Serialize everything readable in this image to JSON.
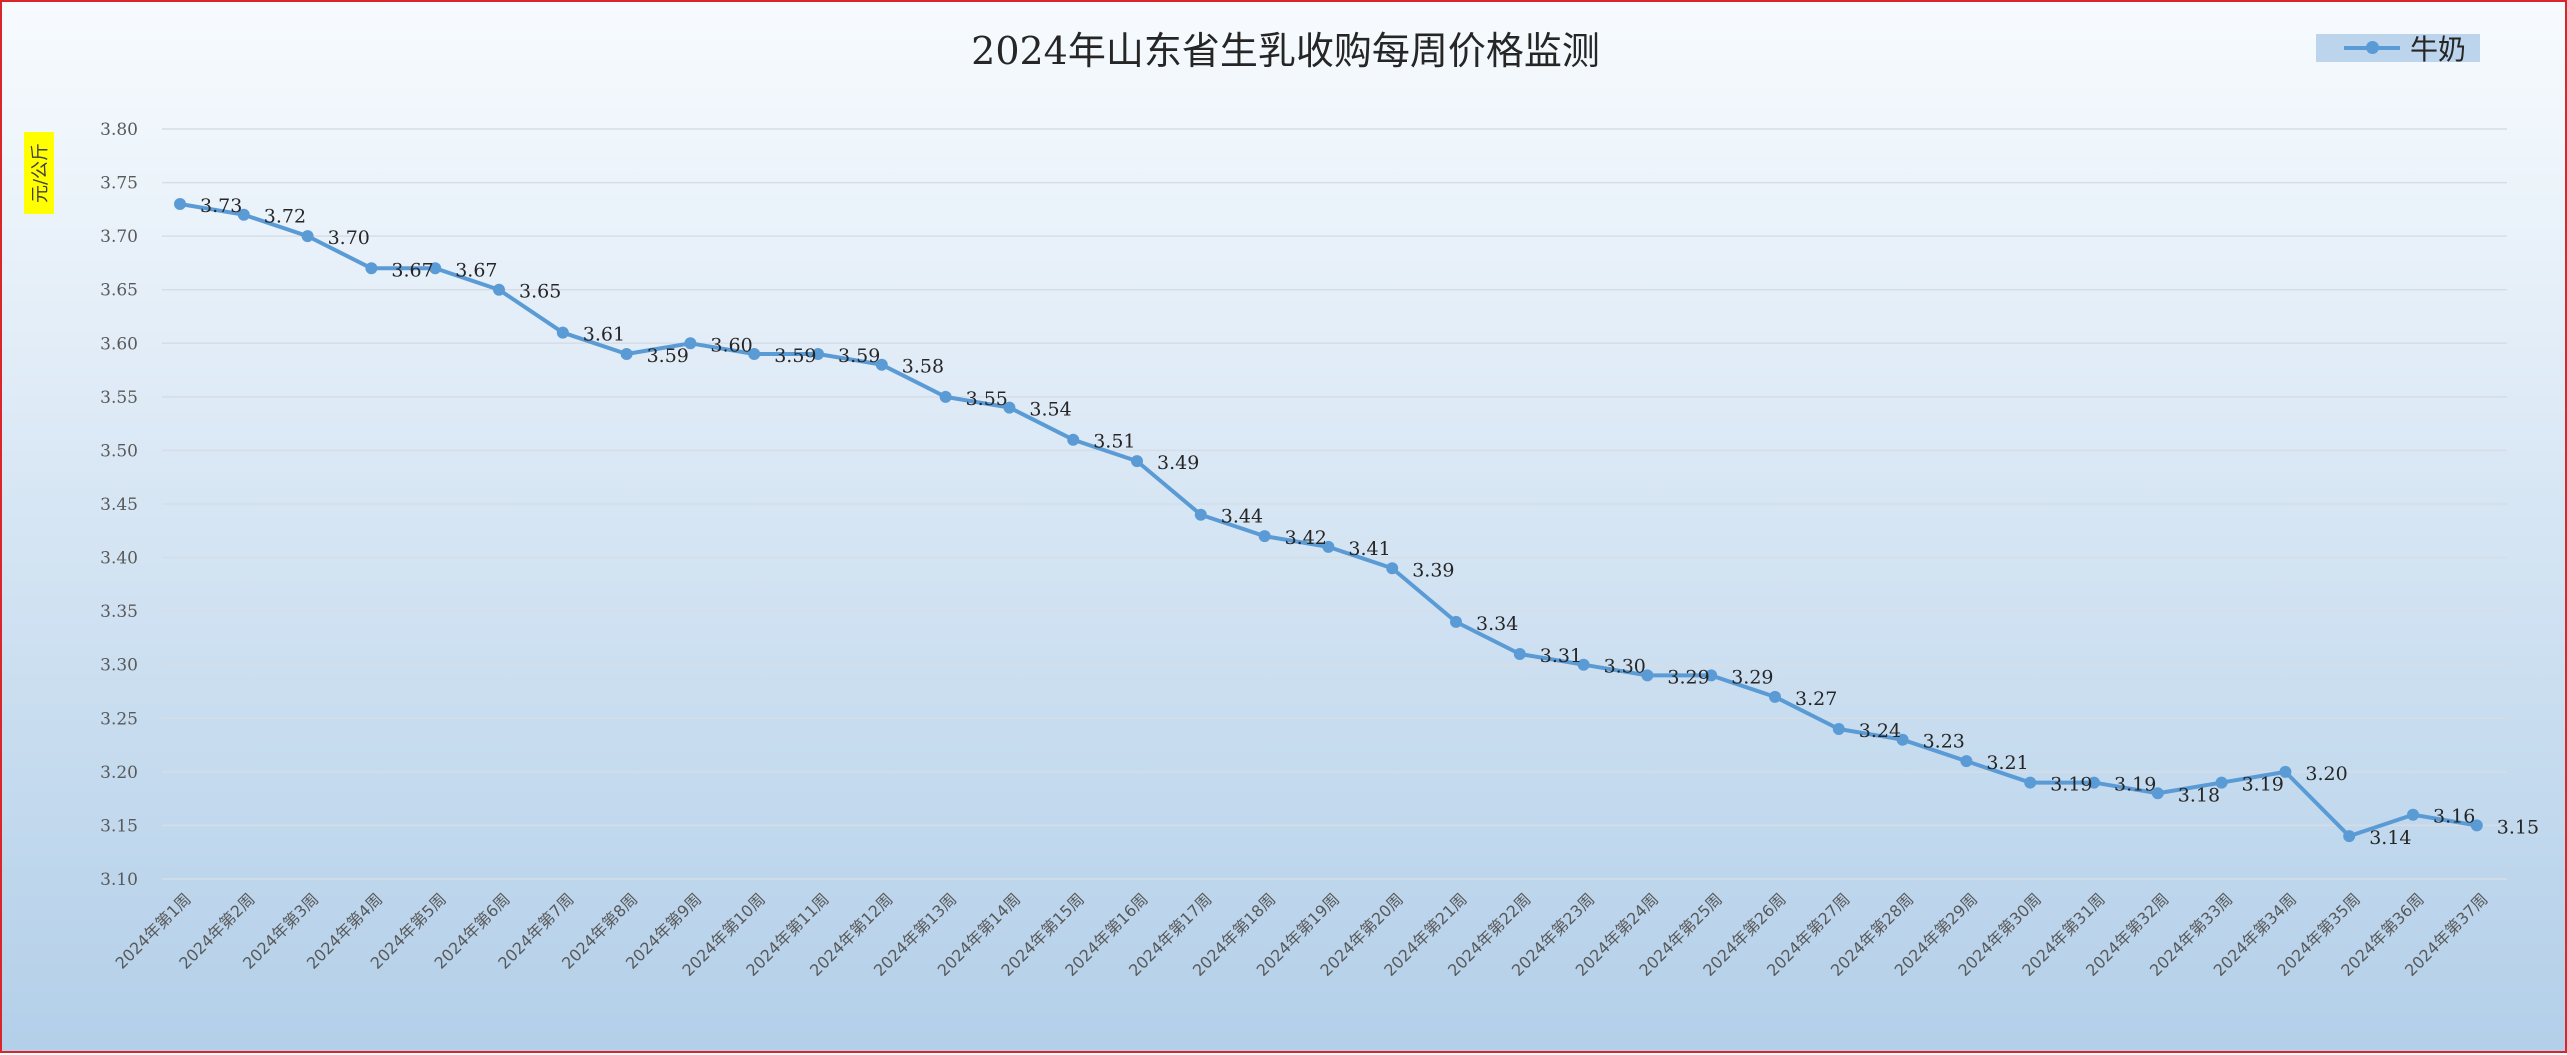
{
  "chart_data": {
    "type": "line",
    "title": "2024年山东省生乳收购每周价格监测",
    "ylabel": "元/公斤",
    "xlabel": "",
    "ylim": [
      3.1,
      3.8
    ],
    "ytick_step": 0.05,
    "grid": true,
    "legend_position": "top-right",
    "categories": [
      "2024年第1周",
      "2024年第2周",
      "2024年第3周",
      "2024年第4周",
      "2024年第5周",
      "2024年第6周",
      "2024年第7周",
      "2024年第8周",
      "2024年第9周",
      "2024年第10周",
      "2024年第11周",
      "2024年第12周",
      "2024年第13周",
      "2024年第14周",
      "2024年第15周",
      "2024年第16周",
      "2024年第17周",
      "2024年第18周",
      "2024年第19周",
      "2024年第20周",
      "2024年第21周",
      "2024年第22周",
      "2024年第23周",
      "2024年第24周",
      "2024年第25周",
      "2024年第26周",
      "2024年第27周",
      "2024年第28周",
      "2024年第29周",
      "2024年第30周",
      "2024年第31周",
      "2024年第32周",
      "2024年第33周",
      "2024年第34周",
      "2024年第35周",
      "2024年第36周",
      "2024年第37周"
    ],
    "series": [
      {
        "name": "牛奶",
        "color": "#5b9bd5",
        "values": [
          3.73,
          3.72,
          3.7,
          3.67,
          3.67,
          3.65,
          3.61,
          3.59,
          3.6,
          3.59,
          3.59,
          3.58,
          3.55,
          3.54,
          3.51,
          3.49,
          3.44,
          3.42,
          3.41,
          3.39,
          3.34,
          3.31,
          3.3,
          3.29,
          3.29,
          3.27,
          3.24,
          3.23,
          3.21,
          3.19,
          3.19,
          3.18,
          3.19,
          3.2,
          3.14,
          3.16,
          3.15
        ],
        "labels": [
          "3.73",
          "3.72",
          "3.70",
          "3.67",
          "3.67",
          "3.65",
          "3.61",
          "3.59",
          "3.60",
          "3.59",
          "3.59",
          "3.58",
          "3.55",
          "3.54",
          "3.51",
          "3.49",
          "3.44",
          "3.42",
          "3.41",
          "3.39",
          "3.34",
          "3.31",
          "3.30",
          "3.29",
          "3.29",
          "3.27",
          "3.24",
          "3.23",
          "3.21",
          "3.19",
          "3.19",
          "3.18",
          "3.19",
          "3.20",
          "3.14",
          "3.16",
          "3.15"
        ]
      }
    ],
    "yticks": [
      "3.10",
      "3.15",
      "3.20",
      "3.25",
      "3.30",
      "3.35",
      "3.40",
      "3.45",
      "3.50",
      "3.55",
      "3.60",
      "3.65",
      "3.70",
      "3.75",
      "3.80"
    ]
  }
}
